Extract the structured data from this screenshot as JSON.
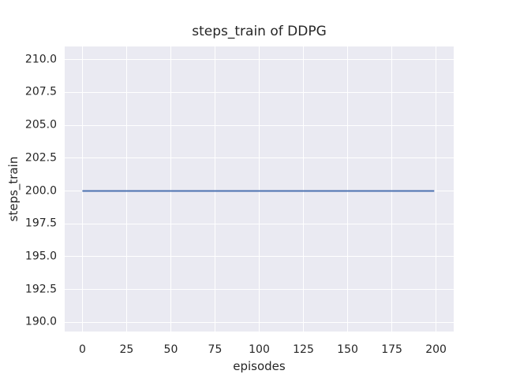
{
  "figure": {
    "background": "#ffffff"
  },
  "chart_data": {
    "type": "line",
    "title": "steps_train of DDPG",
    "xlabel": "episodes",
    "ylabel": "steps_train",
    "x_ticks": [
      0,
      25,
      50,
      75,
      100,
      125,
      150,
      175,
      200
    ],
    "x_tick_labels": [
      "0",
      "25",
      "50",
      "75",
      "100",
      "125",
      "150",
      "175",
      "200"
    ],
    "y_ticks": [
      190.0,
      192.5,
      195.0,
      197.5,
      200.0,
      202.5,
      205.0,
      207.5,
      210.0
    ],
    "y_tick_labels": [
      "190.0",
      "192.5",
      "195.0",
      "197.5",
      "200.0",
      "202.5",
      "205.0",
      "207.5",
      "210.0"
    ],
    "xlim": [
      -10,
      210
    ],
    "ylim": [
      189.3,
      211.0
    ],
    "grid": true,
    "legend": false,
    "style": {
      "plot_background": "#eaeaf2",
      "grid_color": "#ffffff",
      "text_color": "#262626",
      "figure_background": "#ffffff"
    },
    "series": [
      {
        "name": "steps_train",
        "color": "#4c72b0",
        "line_width": 2,
        "x": [
          0,
          199
        ],
        "y": [
          200,
          200
        ]
      }
    ]
  }
}
